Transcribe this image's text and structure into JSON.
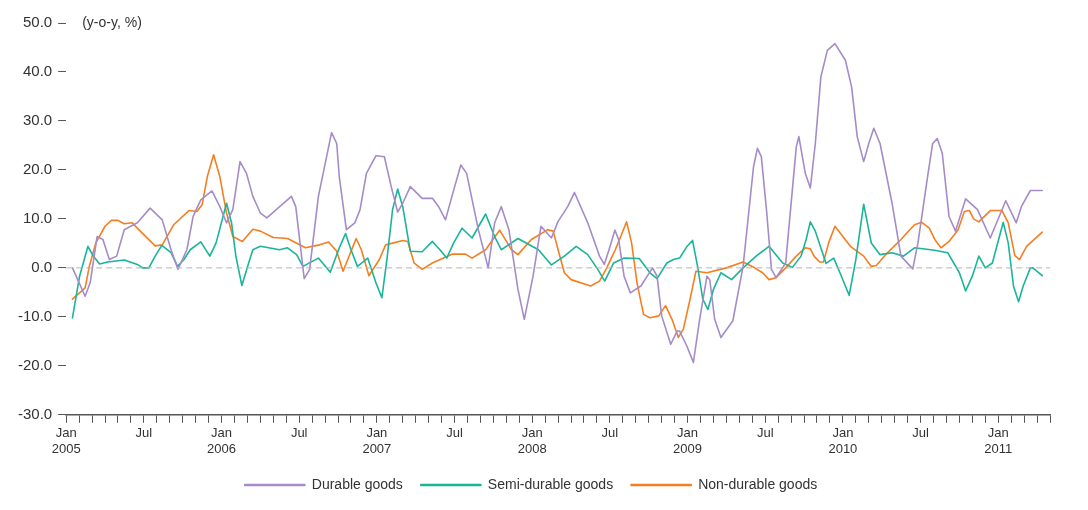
{
  "chart_data": {
    "type": "line",
    "ylabel": "(y-o-y, %)",
    "xlim": [
      "2005-01-01",
      "2011-05-01"
    ],
    "xticks": [
      {
        "value": "2005-01",
        "label": "Jan\n2005"
      },
      {
        "value": "2005-02",
        "label": null
      },
      {
        "value": "2005-03",
        "label": null
      },
      {
        "value": "2005-04",
        "label": null
      },
      {
        "value": "2005-05",
        "label": null
      },
      {
        "value": "2005-06",
        "label": null
      },
      {
        "value": "2005-07",
        "label": "Jul"
      },
      {
        "value": "2005-08",
        "label": null
      },
      {
        "value": "2005-09",
        "label": null
      },
      {
        "value": "2005-10",
        "label": null
      },
      {
        "value": "2005-11",
        "label": null
      },
      {
        "value": "2005-12",
        "label": null
      },
      {
        "value": "2006-01",
        "label": "Jan\n2006"
      },
      {
        "value": "2006-02",
        "label": null
      },
      {
        "value": "2006-03",
        "label": null
      },
      {
        "value": "2006-04",
        "label": null
      },
      {
        "value": "2006-05",
        "label": null
      },
      {
        "value": "2006-06",
        "label": null
      },
      {
        "value": "2006-07",
        "label": "Jul"
      },
      {
        "value": "2006-08",
        "label": null
      },
      {
        "value": "2006-09",
        "label": null
      },
      {
        "value": "2006-10",
        "label": null
      },
      {
        "value": "2006-11",
        "label": null
      },
      {
        "value": "2006-12",
        "label": null
      },
      {
        "value": "2007-01",
        "label": "Jan\n2007"
      },
      {
        "value": "2007-02",
        "label": null
      },
      {
        "value": "2007-03",
        "label": null
      },
      {
        "value": "2007-04",
        "label": null
      },
      {
        "value": "2007-05",
        "label": null
      },
      {
        "value": "2007-06",
        "label": null
      },
      {
        "value": "2007-07",
        "label": "Jul"
      },
      {
        "value": "2007-08",
        "label": null
      },
      {
        "value": "2007-09",
        "label": null
      },
      {
        "value": "2007-10",
        "label": null
      },
      {
        "value": "2007-11",
        "label": null
      },
      {
        "value": "2007-12",
        "label": null
      },
      {
        "value": "2008-01",
        "label": "Jan\n2008"
      },
      {
        "value": "2008-02",
        "label": null
      },
      {
        "value": "2008-03",
        "label": null
      },
      {
        "value": "2008-04",
        "label": null
      },
      {
        "value": "2008-05",
        "label": null
      },
      {
        "value": "2008-06",
        "label": null
      },
      {
        "value": "2008-07",
        "label": "Jul"
      },
      {
        "value": "2008-08",
        "label": null
      },
      {
        "value": "2008-09",
        "label": null
      },
      {
        "value": "2008-10",
        "label": null
      },
      {
        "value": "2008-11",
        "label": null
      },
      {
        "value": "2008-12",
        "label": null
      },
      {
        "value": "2009-01",
        "label": "Jan\n2009"
      },
      {
        "value": "2009-02",
        "label": null
      },
      {
        "value": "2009-03",
        "label": null
      },
      {
        "value": "2009-04",
        "label": null
      },
      {
        "value": "2009-05",
        "label": null
      },
      {
        "value": "2009-06",
        "label": null
      },
      {
        "value": "2009-07",
        "label": "Jul"
      },
      {
        "value": "2009-08",
        "label": null
      },
      {
        "value": "2009-09",
        "label": null
      },
      {
        "value": "2009-10",
        "label": null
      },
      {
        "value": "2009-11",
        "label": null
      },
      {
        "value": "2009-12",
        "label": null
      },
      {
        "value": "2010-01",
        "label": "Jan\n2010"
      },
      {
        "value": "2010-02",
        "label": null
      },
      {
        "value": "2010-03",
        "label": null
      },
      {
        "value": "2010-04",
        "label": null
      },
      {
        "value": "2010-05",
        "label": null
      },
      {
        "value": "2010-06",
        "label": null
      },
      {
        "value": "2010-07",
        "label": "Jul"
      },
      {
        "value": "2010-08",
        "label": null
      },
      {
        "value": "2010-09",
        "label": null
      },
      {
        "value": "2010-10",
        "label": null
      },
      {
        "value": "2010-11",
        "label": null
      },
      {
        "value": "2010-12",
        "label": null
      },
      {
        "value": "2011-01",
        "label": "Jan\n2011"
      },
      {
        "value": "2011-02",
        "label": null
      },
      {
        "value": "2011-03",
        "label": null
      },
      {
        "value": "2011-04",
        "label": null
      },
      {
        "value": "2011-05",
        "label": null
      }
    ],
    "ylim": [
      -30,
      50
    ],
    "yticks": [
      {
        "value": -30,
        "label": "-30.0"
      },
      {
        "value": -20,
        "label": "-20.0"
      },
      {
        "value": -10,
        "label": "-10.0"
      },
      {
        "value": 0,
        "label": "0.0"
      },
      {
        "value": 10,
        "label": "10.0"
      },
      {
        "value": 20,
        "label": "20.0"
      },
      {
        "value": 30,
        "label": "30.0"
      },
      {
        "value": 40,
        "label": "40.0"
      },
      {
        "value": 50,
        "label": "50.0"
      }
    ],
    "grid": false,
    "legend": "bottom",
    "marker": "none",
    "line_style": "solid",
    "ref_lines": [
      {
        "axis": "y",
        "value": 0,
        "color": "#b4b4b4",
        "line_style": "dashed"
      }
    ],
    "series": [
      {
        "name": "Durable goods",
        "color": "#a58cc8",
        "x": [
          "2005-01-16",
          "2005-02-14",
          "2005-02-25",
          "2005-03-13",
          "2005-03-27",
          "2005-04-11",
          "2005-04-28",
          "2005-05-16",
          "2005-06-16",
          "2005-07-16",
          "2005-08-14",
          "2005-09-04",
          "2005-09-20",
          "2005-10-11",
          "2005-10-26",
          "2005-11-13",
          "2005-12-09",
          "2005-12-28",
          "2006-01-13",
          "2006-01-28",
          "2006-02-13",
          "2006-02-27",
          "2006-03-14",
          "2006-04-01",
          "2006-04-16",
          "2006-06-13",
          "2006-06-23",
          "2006-07-03",
          "2006-07-13",
          "2006-07-26",
          "2006-08-16",
          "2006-09-16",
          "2006-09-28",
          "2006-10-04",
          "2006-10-21",
          "2006-11-10",
          "2006-11-22",
          "2006-12-07",
          "2006-12-30",
          "2007-01-19",
          "2007-02-04",
          "2007-02-18",
          "2007-03-01",
          "2007-03-19",
          "2007-04-16",
          "2007-05-10",
          "2007-05-25",
          "2007-06-10",
          "2007-06-25",
          "2007-07-16",
          "2007-07-30",
          "2007-08-27",
          "2007-09-19",
          "2007-10-04",
          "2007-10-20",
          "2007-11-07",
          "2007-11-28",
          "2007-12-13",
          "2008-01-03",
          "2008-01-22",
          "2008-02-15",
          "2008-03-01",
          "2008-03-24",
          "2008-04-09",
          "2008-05-10",
          "2008-06-07",
          "2008-06-18",
          "2008-06-29",
          "2008-07-13",
          "2008-07-22",
          "2008-08-04",
          "2008-08-19",
          "2008-09-13",
          "2008-10-10",
          "2008-10-21",
          "2008-11-01",
          "2008-11-22",
          "2008-12-07",
          "2008-12-13",
          "2008-12-30",
          "2009-01-15",
          "2009-01-30",
          "2009-02-15",
          "2009-02-21",
          "2009-03-04",
          "2009-03-19",
          "2009-04-16",
          "2009-05-10",
          "2009-06-04",
          "2009-06-13",
          "2009-06-22",
          "2009-07-04",
          "2009-07-16",
          "2009-07-27",
          "2009-08-19",
          "2009-09-13",
          "2009-09-19",
          "2009-10-04",
          "2009-10-16",
          "2009-10-28",
          "2009-11-10",
          "2009-11-25",
          "2009-12-13",
          "2010-01-07",
          "2010-01-22",
          "2010-02-04",
          "2010-02-18",
          "2010-03-01",
          "2010-03-13",
          "2010-03-28",
          "2010-04-25",
          "2010-05-16",
          "2010-06-13",
          "2010-06-25",
          "2010-07-19",
          "2010-07-30",
          "2010-08-10",
          "2010-08-22",
          "2010-09-07",
          "2010-09-22",
          "2010-10-16",
          "2010-11-13",
          "2010-12-13",
          "2011-01-19",
          "2011-02-12",
          "2011-02-23",
          "2011-03-16",
          "2011-04-13"
        ],
        "values": [
          0,
          -5.8,
          -3,
          6.4,
          5.8,
          1.7,
          2.4,
          7.8,
          9.2,
          12.2,
          9.8,
          3.7,
          -0.3,
          3.7,
          10.5,
          13.9,
          15.7,
          12.5,
          9.2,
          11.9,
          21.7,
          19.3,
          14.6,
          11.2,
          10.2,
          14.6,
          12.5,
          5.1,
          -2.2,
          -0.3,
          14.6,
          27.6,
          25.4,
          18.6,
          7.8,
          9.2,
          11.9,
          19.3,
          22.9,
          22.7,
          16.6,
          11.4,
          13.2,
          16.6,
          14.2,
          14.2,
          12.5,
          9.8,
          14.6,
          21,
          19.3,
          7.8,
          0,
          9.2,
          12.5,
          7.8,
          -4.4,
          -10.5,
          -1.7,
          8.5,
          6.1,
          9.5,
          12.5,
          15.4,
          9.2,
          2.4,
          0.7,
          3.7,
          7.7,
          5.8,
          -1.7,
          -5.1,
          -3.7,
          0,
          -1.7,
          -9.8,
          -15.6,
          -12.9,
          -12.9,
          -15.9,
          -19.3,
          -10.5,
          -1.7,
          -2.4,
          -10.5,
          -14.2,
          -10.8,
          0.3,
          20.7,
          24.4,
          22.7,
          11.9,
          -0.3,
          -2,
          1,
          24.7,
          26.8,
          19.3,
          16.3,
          25.4,
          39,
          44.4,
          45.8,
          42.4,
          36.9,
          26.8,
          21.7,
          25.4,
          28.5,
          25.4,
          13.2,
          2.4,
          -0.2,
          5.1,
          19.3,
          25.4,
          26.4,
          23.4,
          10.5,
          7.5,
          14.1,
          11.9,
          6.1,
          13.7,
          9.2,
          12.5,
          15.8,
          15.8
        ]
      },
      {
        "name": "Semi-durable goods",
        "color": "#1ab49b",
        "x": [
          "2005-01-16",
          "2005-02-02",
          "2005-02-20",
          "2005-03-04",
          "2005-03-19",
          "2005-04-07",
          "2005-05-16",
          "2005-06-16",
          "2005-06-28",
          "2005-07-13",
          "2005-07-28",
          "2005-08-13",
          "2005-09-04",
          "2005-09-19",
          "2005-10-04",
          "2005-10-19",
          "2005-11-13",
          "2005-12-04",
          "2005-12-19",
          "2006-01-13",
          "2006-01-25",
          "2006-02-04",
          "2006-02-17",
          "2006-03-04",
          "2006-03-14",
          "2006-04-01",
          "2006-05-16",
          "2006-06-04",
          "2006-06-25",
          "2006-07-10",
          "2006-08-16",
          "2006-09-13",
          "2006-10-04",
          "2006-10-19",
          "2006-11-01",
          "2006-11-16",
          "2006-12-10",
          "2006-12-30",
          "2007-01-13",
          "2007-01-25",
          "2007-02-07",
          "2007-02-18",
          "2007-03-01",
          "2007-03-19",
          "2007-04-16",
          "2007-05-10",
          "2007-05-28",
          "2007-06-13",
          "2007-06-29",
          "2007-07-19",
          "2007-08-12",
          "2007-09-13",
          "2007-10-04",
          "2007-10-20",
          "2007-11-28",
          "2008-01-16",
          "2008-02-15",
          "2008-03-16",
          "2008-04-13",
          "2008-05-10",
          "2008-06-03",
          "2008-06-19",
          "2008-07-10",
          "2008-08-04",
          "2008-09-09",
          "2008-10-04",
          "2008-10-21",
          "2008-11-13",
          "2008-11-28",
          "2008-12-13",
          "2008-12-30",
          "2009-01-13",
          "2009-01-25",
          "2009-02-06",
          "2009-02-17",
          "2009-03-01",
          "2009-03-19",
          "2009-04-13",
          "2009-05-10",
          "2009-06-10",
          "2009-07-10",
          "2009-08-12",
          "2009-09-04",
          "2009-09-24",
          "2009-10-06",
          "2009-10-16",
          "2009-10-28",
          "2009-11-22",
          "2009-12-10",
          "2009-12-25",
          "2010-01-16",
          "2010-02-01",
          "2010-02-18",
          "2010-03-07",
          "2010-03-28",
          "2010-04-25",
          "2010-05-22",
          "2010-06-17",
          "2010-08-04",
          "2010-09-04",
          "2010-10-01",
          "2010-10-16",
          "2010-11-01",
          "2010-11-16",
          "2010-12-01",
          "2010-12-18",
          "2011-01-13",
          "2011-01-25",
          "2011-02-06",
          "2011-02-17",
          "2011-02-27",
          "2011-03-16",
          "2011-03-22",
          "2011-04-13"
        ],
        "values": [
          -10.2,
          -1.7,
          4.4,
          2.4,
          0.8,
          1.2,
          1.6,
          0.7,
          0,
          0,
          2.4,
          4.6,
          3.1,
          0.3,
          1.7,
          3.7,
          5.3,
          2.4,
          5.1,
          13.2,
          9.2,
          2.4,
          -3.6,
          1,
          3.7,
          4.4,
          3.7,
          4.1,
          2.7,
          0.3,
          2,
          -0.9,
          4.1,
          7,
          3.7,
          0.3,
          2,
          -3.1,
          -6.1,
          1.7,
          11.9,
          16.1,
          12.5,
          3.4,
          3.3,
          5.4,
          3.7,
          2,
          5.1,
          8.1,
          6.1,
          11,
          6.4,
          3.7,
          6,
          3.7,
          0.6,
          2.4,
          4.4,
          2.7,
          -0.3,
          -2.7,
          1,
          2,
          1.9,
          -1,
          -2.2,
          1,
          1.7,
          2,
          4.3,
          5.6,
          0.3,
          -6.4,
          -8.5,
          -4.4,
          -1,
          -2.4,
          0,
          2.4,
          4.4,
          1,
          0.1,
          2.4,
          5.8,
          9.4,
          7.5,
          0.9,
          2,
          -1,
          -5.6,
          1.7,
          13,
          5.1,
          2.7,
          3.1,
          2.4,
          4.1,
          3.6,
          3.1,
          -1,
          -4.7,
          -1.7,
          2.4,
          0,
          1,
          9.3,
          5.1,
          -3.7,
          -6.9,
          -3.7,
          0,
          0,
          -1.6
        ]
      },
      {
        "name": "Non-durable goods",
        "color": "#f57f20",
        "x": [
          "2005-01-16",
          "2005-02-14",
          "2005-02-23",
          "2005-03-10",
          "2005-04-01",
          "2005-04-16",
          "2005-05-01",
          "2005-05-16",
          "2005-06-04",
          "2005-06-25",
          "2005-07-28",
          "2005-08-14",
          "2005-09-10",
          "2005-10-16",
          "2005-11-04",
          "2005-11-16",
          "2005-11-28",
          "2005-12-13",
          "2005-12-28",
          "2006-01-13",
          "2006-01-28",
          "2006-02-18",
          "2006-03-14",
          "2006-04-01",
          "2006-05-01",
          "2006-06-04",
          "2006-07-16",
          "2006-08-19",
          "2006-09-09",
          "2006-09-28",
          "2006-10-13",
          "2006-11-13",
          "2006-11-25",
          "2006-12-13",
          "2007-01-07",
          "2007-01-22",
          "2007-03-01",
          "2007-03-13",
          "2007-03-28",
          "2007-04-16",
          "2007-05-10",
          "2007-06-25",
          "2007-07-27",
          "2007-08-12",
          "2007-09-13",
          "2007-10-16",
          "2007-11-13",
          "2007-11-28",
          "2007-12-30",
          "2008-02-07",
          "2008-02-19",
          "2008-03-01",
          "2008-03-16",
          "2008-04-01",
          "2008-05-17",
          "2008-06-07",
          "2008-06-22",
          "2008-07-14",
          "2008-07-27",
          "2008-08-10",
          "2008-08-22",
          "2008-09-04",
          "2008-09-19",
          "2008-10-04",
          "2008-10-25",
          "2008-11-10",
          "2008-11-25",
          "2008-12-10",
          "2008-12-22",
          "2009-01-07",
          "2009-01-21",
          "2009-02-15",
          "2009-04-01",
          "2009-05-10",
          "2009-06-01",
          "2009-06-25",
          "2009-07-10",
          "2009-07-27",
          "2009-08-19",
          "2009-09-13",
          "2009-10-04",
          "2009-10-16",
          "2009-10-25",
          "2009-11-07",
          "2009-11-16",
          "2009-11-28",
          "2009-12-13",
          "2010-01-19",
          "2010-02-18",
          "2010-03-07",
          "2010-03-19",
          "2010-04-10",
          "2010-05-16",
          "2010-06-17",
          "2010-07-04",
          "2010-07-22",
          "2010-08-04",
          "2010-08-19",
          "2010-09-07",
          "2010-09-28",
          "2010-10-13",
          "2010-10-25",
          "2010-11-04",
          "2010-11-16",
          "2010-12-13",
          "2011-01-10",
          "2011-01-25",
          "2011-02-09",
          "2011-02-19",
          "2011-03-07",
          "2011-04-13"
        ],
        "values": [
          -6.4,
          -4.1,
          0.3,
          5.1,
          8.5,
          9.7,
          9.7,
          9,
          9.2,
          7.3,
          4.5,
          4.7,
          8.8,
          11.7,
          11.5,
          12.9,
          18.6,
          23.1,
          18.6,
          11.2,
          6.4,
          5.4,
          7.9,
          7.5,
          6.2,
          6,
          4.1,
          4.7,
          5.3,
          3.4,
          -0.7,
          6,
          3.7,
          -1.6,
          1.7,
          4.7,
          5.6,
          5.4,
          1,
          -0.3,
          1,
          2.8,
          2.8,
          2,
          3.7,
          7.7,
          3.7,
          2.7,
          5.8,
          7.8,
          7.5,
          3.7,
          -1,
          -2.4,
          -3.7,
          -2.7,
          -0.3,
          3.7,
          6.4,
          9.4,
          5.1,
          -3.1,
          -9.5,
          -10.2,
          -9.8,
          -7.7,
          -10.5,
          -14.2,
          -12.5,
          -6.4,
          -0.7,
          -1,
          0,
          1.2,
          0.3,
          -1,
          -2.4,
          -2,
          0,
          2.4,
          4.1,
          3.9,
          2.4,
          1.2,
          1.2,
          5.1,
          8.5,
          4.4,
          2.4,
          0.3,
          0.5,
          2.7,
          5.8,
          8.8,
          9.3,
          8.1,
          5.8,
          4.1,
          5.4,
          7.8,
          11.5,
          11.7,
          10,
          9.4,
          11.7,
          11.7,
          9.2,
          2.5,
          1.7,
          4.4,
          7.3
        ]
      }
    ]
  }
}
